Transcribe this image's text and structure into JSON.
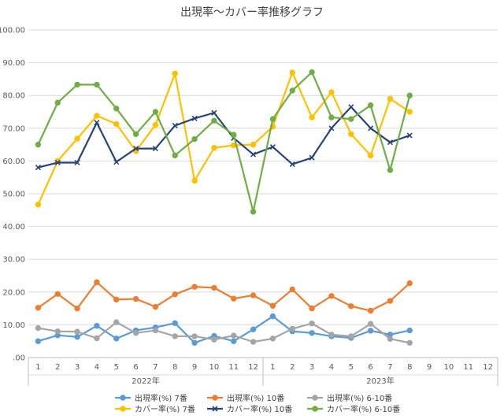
{
  "chart_data": {
    "type": "line",
    "title": "出現率～カバー率推移グラフ",
    "ylim": [
      0,
      100
    ],
    "yticks": [
      "100.00",
      "90.00",
      "80.00",
      "70.00",
      "60.00",
      "50.00",
      "40.00",
      "30.00",
      "20.00",
      "10.00",
      ".00"
    ],
    "x_month_labels": [
      "1",
      "2",
      "3",
      "4",
      "5",
      "6",
      "7",
      "8",
      "9",
      "10",
      "11",
      "12",
      "1",
      "2",
      "3",
      "4",
      "5",
      "6",
      "7",
      "8",
      "9",
      "10",
      "11",
      "12"
    ],
    "year_groups": [
      {
        "label": "2022年",
        "start": 0,
        "end": 12
      },
      {
        "label": "2023年",
        "start": 12,
        "end": 24
      }
    ],
    "grid": true,
    "legend_position": "bottom",
    "series": [
      {
        "name": "出現率(%) 7番",
        "color": "#5b9bd5",
        "marker": "circle",
        "values": [
          5.0,
          6.8,
          6.3,
          9.7,
          5.8,
          8.3,
          9.2,
          10.5,
          4.5,
          6.6,
          5.0,
          8.6,
          12.6,
          8.0,
          7.5,
          6.5,
          6.0,
          8.2,
          7.0,
          8.3,
          null,
          null,
          null,
          null
        ]
      },
      {
        "name": "出現率(%) 10番",
        "color": "#ed7d31",
        "marker": "circle",
        "values": [
          15.2,
          19.4,
          15.0,
          23.0,
          17.7,
          17.9,
          15.5,
          19.3,
          21.6,
          21.3,
          18.0,
          19.0,
          15.8,
          20.8,
          15.0,
          18.8,
          15.7,
          14.3,
          17.3,
          22.7,
          null,
          null,
          null,
          null
        ]
      },
      {
        "name": "出現率(%) 6-10番",
        "color": "#a5a5a5",
        "marker": "circle",
        "values": [
          9.0,
          8.0,
          7.9,
          5.9,
          10.8,
          7.5,
          8.3,
          6.5,
          6.5,
          5.5,
          6.7,
          4.8,
          5.8,
          8.8,
          10.4,
          7.0,
          6.5,
          10.3,
          5.7,
          4.5,
          null,
          null,
          null,
          null
        ]
      },
      {
        "name": "カバー率(%) 7番",
        "color": "#ffc000",
        "marker": "circle",
        "values": [
          46.7,
          60.0,
          66.8,
          73.8,
          71.3,
          63.0,
          71.0,
          86.7,
          54.0,
          64.0,
          64.8,
          65.0,
          70.5,
          87.0,
          73.3,
          81.0,
          68.2,
          61.7,
          79.0,
          75.0,
          null,
          null,
          null,
          null
        ]
      },
      {
        "name": "カバー率(%) 10番",
        "color": "#264478",
        "marker": "x",
        "values": [
          58.0,
          59.5,
          59.5,
          71.7,
          59.7,
          63.8,
          63.8,
          70.8,
          73.0,
          74.7,
          67.0,
          62.0,
          64.3,
          59.0,
          61.0,
          70.0,
          76.5,
          70.0,
          65.7,
          67.8,
          null,
          null,
          null,
          null
        ]
      },
      {
        "name": "カバー率(%) 6-10番",
        "color": "#70ad47",
        "marker": "circle",
        "values": [
          65.0,
          77.8,
          83.3,
          83.3,
          76.0,
          68.2,
          75.0,
          61.7,
          66.7,
          72.3,
          68.0,
          44.5,
          72.8,
          81.5,
          87.1,
          73.3,
          72.8,
          77.0,
          57.2,
          80.0,
          null,
          null,
          null,
          null
        ]
      }
    ]
  }
}
